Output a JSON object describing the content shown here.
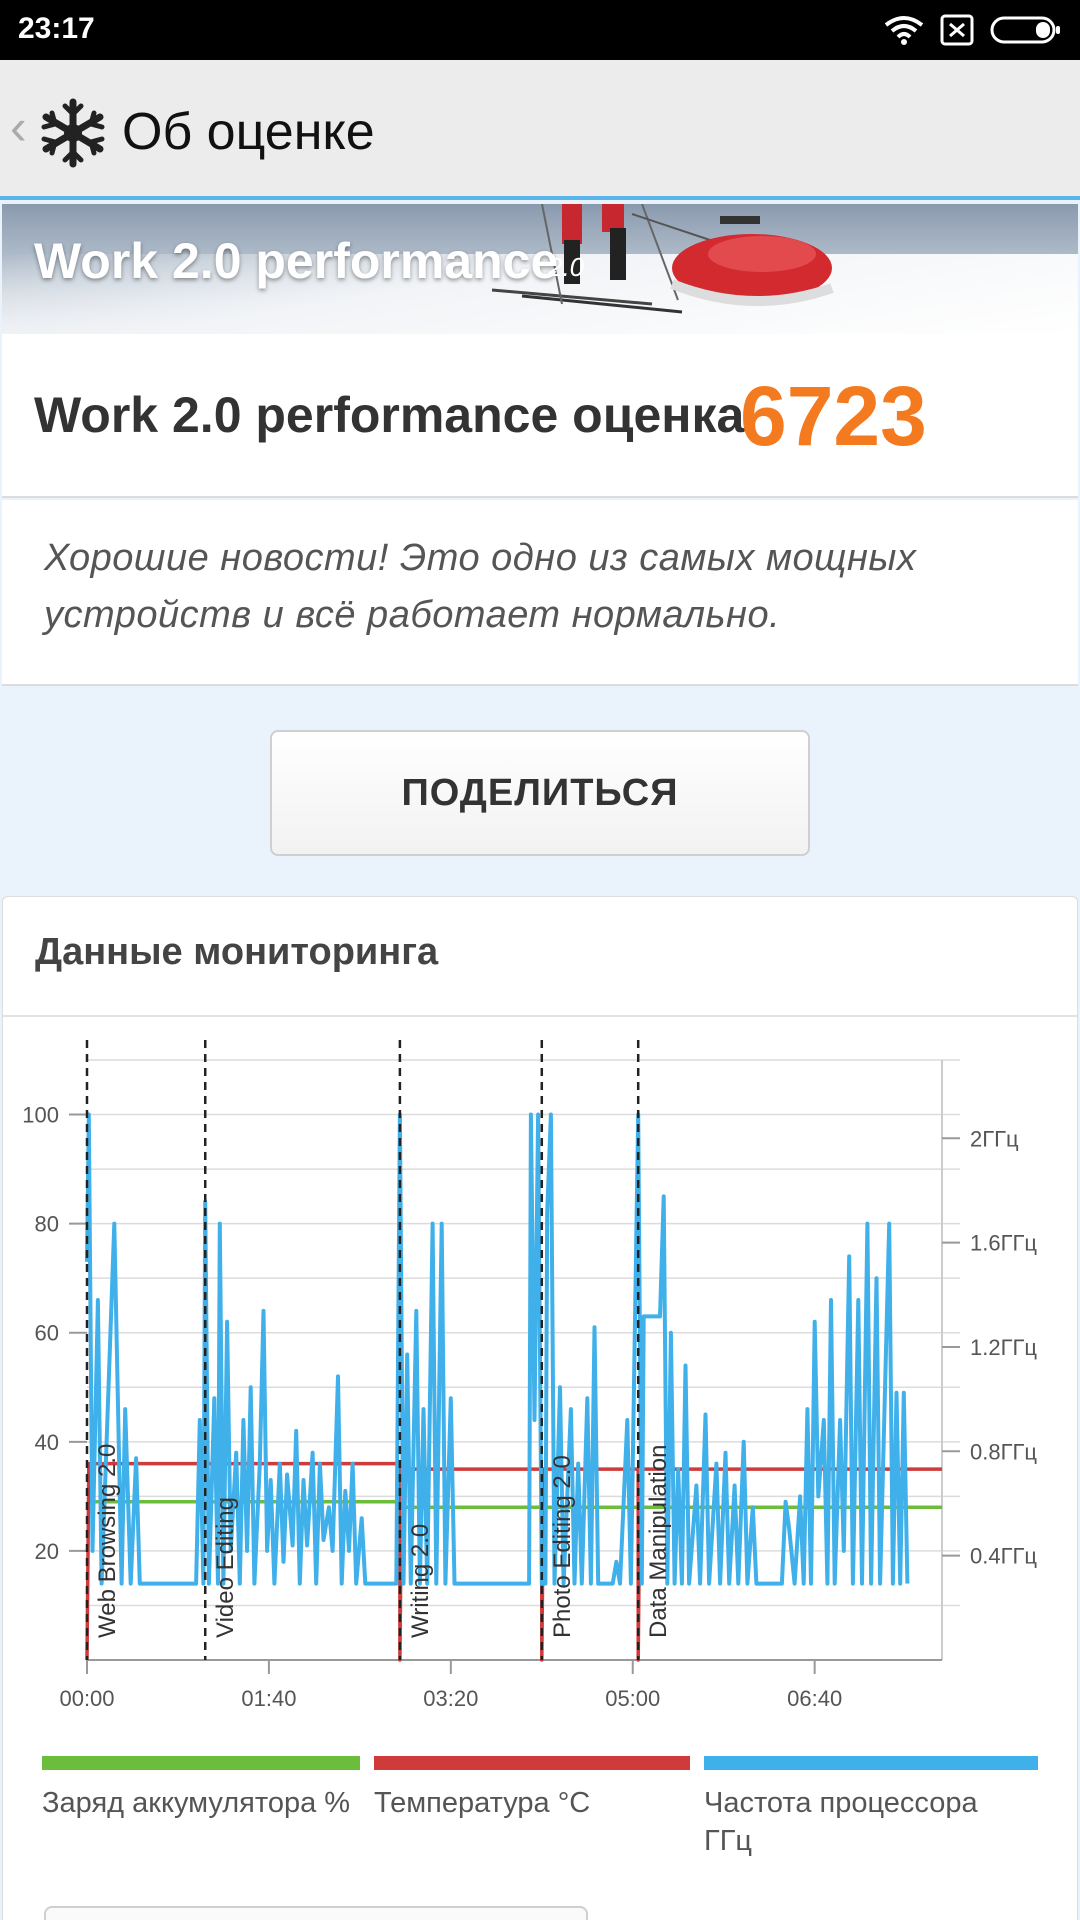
{
  "status_bar": {
    "time": "23:17",
    "icons": [
      "wifi-icon",
      "sim-off-icon",
      "battery-icon"
    ]
  },
  "app_bar": {
    "title": "Об оценке",
    "back_icon": "chevron-left-icon",
    "logo_icon": "snowflake-icon"
  },
  "banner": {
    "name": "Work 2.0 performance",
    "version": "2.0"
  },
  "score": {
    "label": "Work 2.0 performance оценка",
    "value": "6723",
    "color": "#f47a20"
  },
  "message": "Хорошие новости! Это одно из самых мощных устройств и всё работает нормально.",
  "share_button": "ПОДЕЛИТЬСЯ",
  "monitoring": {
    "title": "Данные мониторинга",
    "legend": [
      {
        "label": "Заряд аккумулятора %",
        "color": "#6cbd3c"
      },
      {
        "label": "Температура °C",
        "color": "#cf3a3a"
      },
      {
        "label": "Частота процессора ГГц",
        "color": "#3fb0ea"
      }
    ]
  },
  "chart_data": {
    "type": "line",
    "x_tick_labels": [
      "00:00",
      "01:40",
      "03:20",
      "05:00",
      "06:40"
    ],
    "x_range_seconds": [
      0,
      470
    ],
    "y_left_ticks": [
      20,
      40,
      60,
      80,
      100
    ],
    "y_left_range": [
      0,
      110
    ],
    "y_right_tick_labels": [
      "0.4ГГц",
      "0.8ГГц",
      "1.2ГГц",
      "1.6ГГц",
      "2ГГц"
    ],
    "y_right_range_ghz": [
      0,
      2.3
    ],
    "grid": true,
    "segments": [
      {
        "name": "Web Browsing 2.0",
        "start": 0
      },
      {
        "name": "Video Editing",
        "start": 65
      },
      {
        "name": "Writing 2.0",
        "start": 172
      },
      {
        "name": "Photo Editing 2.0",
        "start": 250
      },
      {
        "name": "Data Manipulation",
        "start": 303
      }
    ],
    "series": [
      {
        "name": "Заряд аккумулятора %",
        "color": "#6cbd3c",
        "points": [
          [
            0,
            29
          ],
          [
            172,
            29
          ],
          [
            173,
            28
          ],
          [
            470,
            28
          ]
        ]
      },
      {
        "name": "Температура °C",
        "color": "#cf3a3a",
        "points": [
          [
            0,
            0
          ],
          [
            1,
            36
          ],
          [
            172,
            36
          ],
          [
            172,
            0
          ],
          [
            173,
            35
          ],
          [
            250,
            35
          ],
          [
            250,
            0
          ],
          [
            251,
            35
          ],
          [
            303,
            35
          ],
          [
            303,
            0
          ],
          [
            304,
            35
          ],
          [
            470,
            35
          ]
        ]
      },
      {
        "name": "Частота процессора ГГц",
        "color": "#3fb0ea",
        "points": [
          [
            0,
            73
          ],
          [
            1,
            100
          ],
          [
            3,
            20
          ],
          [
            6,
            66
          ],
          [
            8,
            14
          ],
          [
            15,
            80
          ],
          [
            19,
            14
          ],
          [
            21,
            46
          ],
          [
            24,
            14
          ],
          [
            27,
            37
          ],
          [
            29,
            14
          ],
          [
            60,
            14
          ],
          [
            62,
            44
          ],
          [
            64,
            14
          ],
          [
            65,
            84
          ],
          [
            67,
            14
          ],
          [
            70,
            48
          ],
          [
            72,
            14
          ],
          [
            73,
            80
          ],
          [
            75,
            14
          ],
          [
            77,
            62
          ],
          [
            79,
            20
          ],
          [
            82,
            38
          ],
          [
            84,
            14
          ],
          [
            86,
            44
          ],
          [
            88,
            20
          ],
          [
            90,
            50
          ],
          [
            92,
            14
          ],
          [
            95,
            36
          ],
          [
            97,
            64
          ],
          [
            99,
            20
          ],
          [
            101,
            33
          ],
          [
            103,
            14
          ],
          [
            106,
            36
          ],
          [
            108,
            18
          ],
          [
            110,
            34
          ],
          [
            113,
            21
          ],
          [
            115,
            42
          ],
          [
            117,
            14
          ],
          [
            119,
            33
          ],
          [
            121,
            21
          ],
          [
            124,
            38
          ],
          [
            126,
            14
          ],
          [
            128,
            36
          ],
          [
            130,
            22
          ],
          [
            133,
            28
          ],
          [
            135,
            20
          ],
          [
            138,
            52
          ],
          [
            140,
            14
          ],
          [
            142,
            31
          ],
          [
            144,
            20
          ],
          [
            146,
            36
          ],
          [
            148,
            14
          ],
          [
            151,
            26
          ],
          [
            153,
            14
          ],
          [
            170,
            14
          ],
          [
            172,
            100
          ],
          [
            174,
            14
          ],
          [
            176,
            56
          ],
          [
            178,
            14
          ],
          [
            181,
            64
          ],
          [
            183,
            14
          ],
          [
            185,
            46
          ],
          [
            187,
            14
          ],
          [
            190,
            80
          ],
          [
            192,
            14
          ],
          [
            195,
            80
          ],
          [
            197,
            14
          ],
          [
            200,
            48
          ],
          [
            202,
            14
          ],
          [
            243,
            14
          ],
          [
            244,
            100
          ],
          [
            246,
            44
          ],
          [
            248,
            100
          ],
          [
            250,
            14
          ],
          [
            252,
            14
          ],
          [
            253,
            82
          ],
          [
            255,
            100
          ],
          [
            257,
            14
          ],
          [
            260,
            50
          ],
          [
            262,
            14
          ],
          [
            266,
            46
          ],
          [
            268,
            14
          ],
          [
            270,
            36
          ],
          [
            272,
            14
          ],
          [
            275,
            48
          ],
          [
            277,
            14
          ],
          [
            279,
            61
          ],
          [
            281,
            14
          ],
          [
            289,
            14
          ],
          [
            291,
            18
          ],
          [
            293,
            14
          ],
          [
            297,
            44
          ],
          [
            299,
            14
          ],
          [
            303,
            100
          ],
          [
            305,
            14
          ],
          [
            306,
            63
          ],
          [
            315,
            63
          ],
          [
            317,
            85
          ],
          [
            319,
            14
          ],
          [
            321,
            60
          ],
          [
            323,
            14
          ],
          [
            325,
            35
          ],
          [
            327,
            14
          ],
          [
            329,
            54
          ],
          [
            331,
            14
          ],
          [
            335,
            32
          ],
          [
            337,
            14
          ],
          [
            340,
            45
          ],
          [
            342,
            14
          ],
          [
            346,
            36
          ],
          [
            348,
            14
          ],
          [
            351,
            38
          ],
          [
            353,
            14
          ],
          [
            356,
            32
          ],
          [
            358,
            14
          ],
          [
            361,
            40
          ],
          [
            363,
            14
          ],
          [
            366,
            28
          ],
          [
            368,
            14
          ],
          [
            382,
            14
          ],
          [
            384,
            29
          ],
          [
            386,
            24
          ],
          [
            389,
            14
          ],
          [
            392,
            30
          ],
          [
            394,
            14
          ],
          [
            396,
            46
          ],
          [
            398,
            14
          ],
          [
            400,
            62
          ],
          [
            402,
            30
          ],
          [
            405,
            44
          ],
          [
            407,
            14
          ],
          [
            409,
            66
          ],
          [
            411,
            14
          ],
          [
            414,
            44
          ],
          [
            416,
            20
          ],
          [
            419,
            74
          ],
          [
            421,
            14
          ],
          [
            424,
            66
          ],
          [
            426,
            14
          ],
          [
            429,
            80
          ],
          [
            431,
            14
          ],
          [
            434,
            70
          ],
          [
            436,
            14
          ],
          [
            441,
            80
          ],
          [
            443,
            14
          ],
          [
            445,
            49
          ],
          [
            447,
            14
          ],
          [
            449,
            49
          ],
          [
            451,
            14
          ]
        ]
      }
    ]
  }
}
